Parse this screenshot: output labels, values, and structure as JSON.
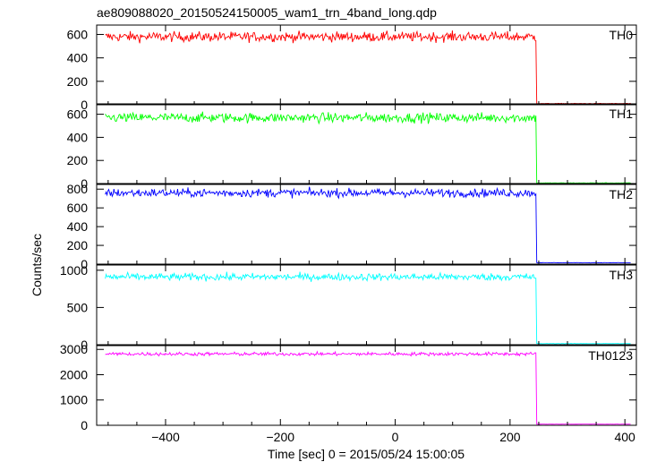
{
  "chart_data": {
    "type": "line",
    "title": "ae809088020_20150524150005_wam1_trn_4band_long.qdp",
    "xlabel": "Time [sec] 0 = 2015/05/24 15:00:05",
    "ylabel": "Counts/sec",
    "xlim": [
      -520,
      420
    ],
    "x_ticks": [
      -400,
      -200,
      0,
      200,
      400
    ],
    "step_time": 246,
    "data_start": -505,
    "data_end": 410,
    "panels": [
      {
        "name": "TH0",
        "color": "#ff0000",
        "ylim": [
          0,
          680
        ],
        "y_ticks": [
          0,
          200,
          400,
          600
        ],
        "level_before": 580,
        "noise": 30,
        "level_after": 10
      },
      {
        "name": "TH1",
        "color": "#00ff00",
        "ylim": [
          0,
          690
        ],
        "y_ticks": [
          0,
          200,
          400,
          600
        ],
        "level_before": 570,
        "noise": 30,
        "level_after": 5
      },
      {
        "name": "TH2",
        "color": "#0000ff",
        "ylim": [
          0,
          850
        ],
        "y_ticks": [
          0,
          200,
          400,
          600,
          800
        ],
        "level_before": 760,
        "noise": 32,
        "level_after": 15
      },
      {
        "name": "TH3",
        "color": "#00ffff",
        "ylim": [
          0,
          1070
        ],
        "y_ticks": [
          0,
          500,
          1000
        ],
        "level_before": 910,
        "noise": 35,
        "level_after": 15
      },
      {
        "name": "TH0123",
        "color": "#ff00ff",
        "ylim": [
          0,
          3150
        ],
        "y_ticks": [
          0,
          1000,
          2000,
          3000
        ],
        "level_before": 2820,
        "noise": 50,
        "level_after": 45
      }
    ]
  }
}
